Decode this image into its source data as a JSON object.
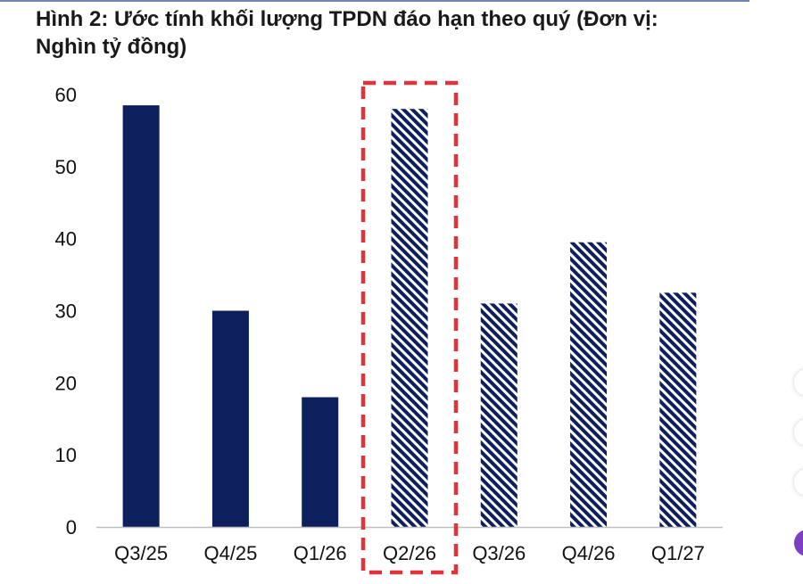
{
  "title": "Hình 2: Ước tính khối lượng TPDN đáo hạn theo quý (Đơn vị: Nghìn tỷ đồng)",
  "colors": {
    "bar": "#0d1f5c",
    "highlight_box": "#e0343a",
    "axis": "#bfbfbf",
    "page_rule": "#6f86b6"
  },
  "chart_data": {
    "type": "bar",
    "title": "Hình 2: Ước tính khối lượng TPDN đáo hạn theo quý (Đơn vị: Nghìn tỷ đồng)",
    "xlabel": "",
    "ylabel": "",
    "categories": [
      "Q3/25",
      "Q4/25",
      "Q1/26",
      "Q2/26",
      "Q3/26",
      "Q4/26",
      "Q1/27"
    ],
    "values": [
      58.5,
      30,
      18,
      58,
      31,
      39.5,
      32.5
    ],
    "fill_styles": [
      "solid",
      "solid",
      "solid",
      "hatched",
      "hatched",
      "hatched",
      "hatched"
    ],
    "highlighted_category": "Q2/26",
    "ylim": [
      0,
      60
    ],
    "yticks": [
      0,
      10,
      20,
      30,
      40,
      50,
      60
    ],
    "grid": false,
    "legend": "none"
  }
}
